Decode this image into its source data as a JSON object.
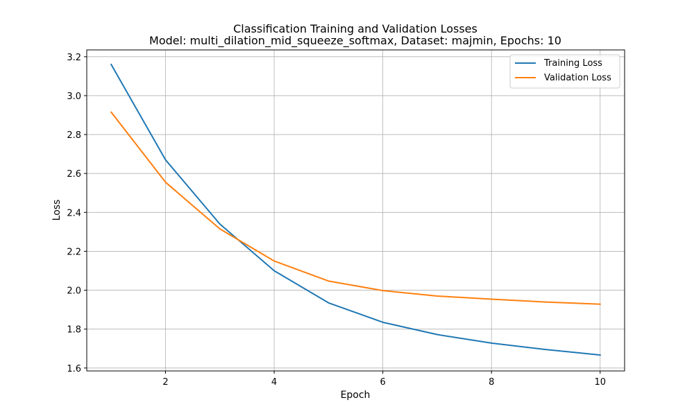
{
  "chart_data": {
    "type": "line",
    "title": "Classification Training and Validation Losses",
    "subtitle": "Model: multi_dilation_mid_squeeze_softmax, Dataset: majmin, Epochs: 10",
    "xlabel": "Epoch",
    "ylabel": "Loss",
    "x": [
      1,
      2,
      3,
      4,
      5,
      6,
      7,
      8,
      9,
      10
    ],
    "series": [
      {
        "name": "Training Loss",
        "color": "#1f77b4",
        "values": [
          3.16,
          2.67,
          2.34,
          2.1,
          1.935,
          1.835,
          1.772,
          1.728,
          1.695,
          1.667
        ]
      },
      {
        "name": "Validation Loss",
        "color": "#ff7f0e",
        "values": [
          2.915,
          2.555,
          2.315,
          2.15,
          2.047,
          1.998,
          1.97,
          1.954,
          1.939,
          1.928
        ]
      }
    ],
    "xlim": [
      0.55,
      10.45
    ],
    "ylim": [
      1.585,
      3.235
    ],
    "xticks": [
      2,
      4,
      6,
      8,
      10
    ],
    "xtick_labels": [
      "2",
      "4",
      "6",
      "8",
      "10"
    ],
    "yticks": [
      1.6,
      1.8,
      2.0,
      2.2,
      2.4,
      2.6,
      2.8,
      3.0,
      3.2
    ],
    "ytick_labels": [
      "1.6",
      "1.8",
      "2.0",
      "2.2",
      "2.4",
      "2.6",
      "2.8",
      "3.0",
      "3.2"
    ],
    "grid": true,
    "legend_position": "top-right"
  }
}
